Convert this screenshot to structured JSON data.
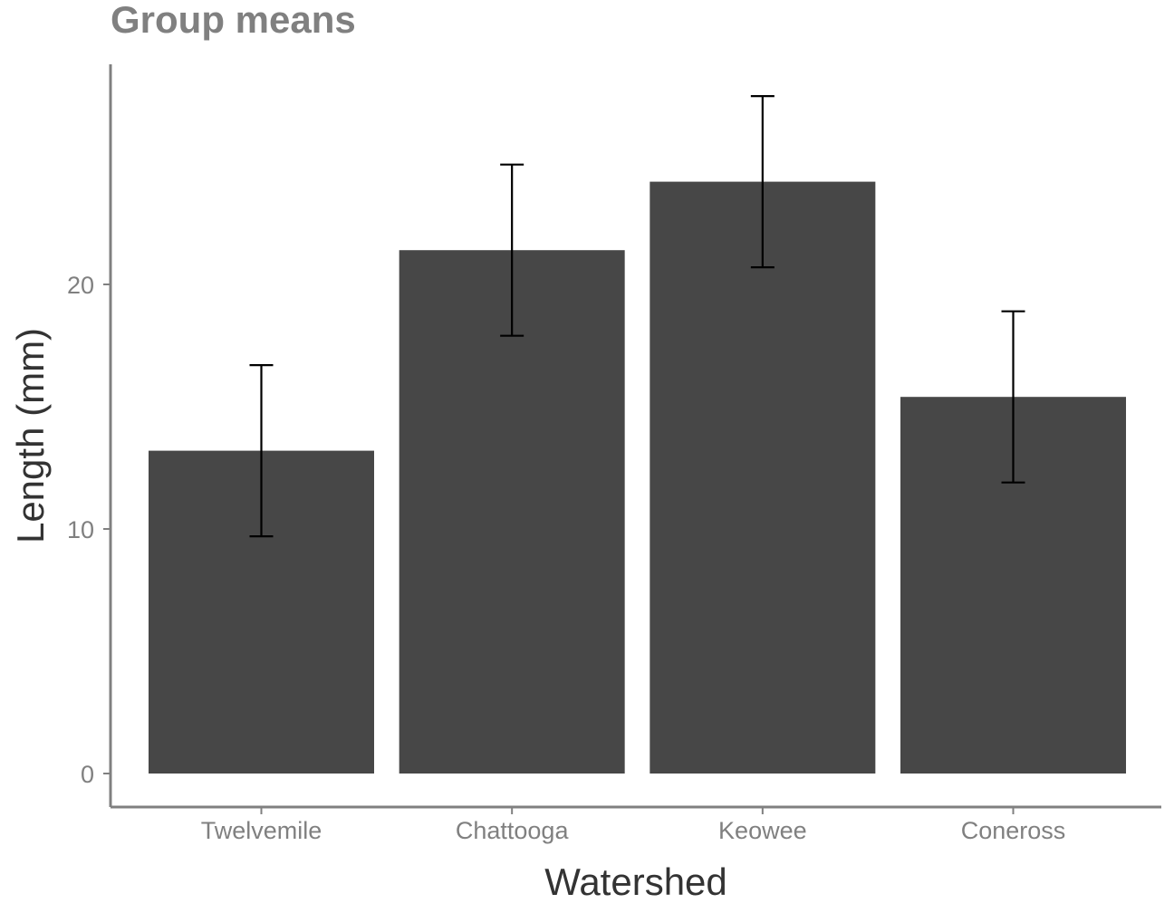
{
  "chart_data": {
    "type": "bar",
    "title": "Group means",
    "xlabel": "Watershed",
    "ylabel": "Length (mm)",
    "categories": [
      "Twelvemile",
      "Chattooga",
      "Keowee",
      "Coneross"
    ],
    "values": [
      13.2,
      21.4,
      24.2,
      15.4
    ],
    "error_bars": {
      "lower": [
        9.7,
        17.9,
        20.7,
        11.9
      ],
      "upper": [
        16.7,
        24.9,
        27.7,
        18.9
      ]
    },
    "y_ticks": [
      0,
      10,
      20
    ],
    "y_tick_labels": [
      "0",
      "10",
      "20"
    ],
    "ylim": [
      0,
      28
    ],
    "grid": false,
    "legend": "none",
    "colors": {
      "bar": "#474747",
      "error_bar": "#000000",
      "axis": "#808080",
      "tick_label": "#808080",
      "title": "#808080",
      "axis_title": "#333333"
    }
  }
}
